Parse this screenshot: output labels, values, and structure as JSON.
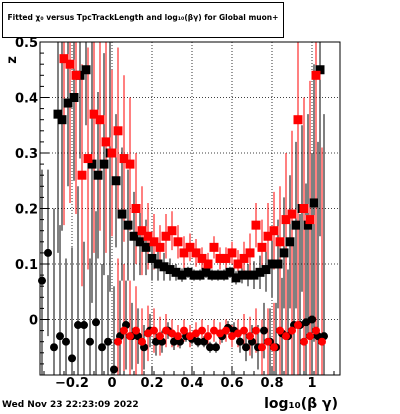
{
  "title": "Fitted  χ₀ versus TpcTrackLength and log₁₀(βγ) for Global muon+",
  "timestamp": "Wed Nov 23 22:23:09 2022",
  "chart_data": {
    "type": "scatter",
    "xlabel": "log₁₀(β γ)",
    "ylabel": "z",
    "xlim": [
      -0.36,
      1.14
    ],
    "ylim": [
      -0.1,
      0.5
    ],
    "grid": true,
    "x_ticks": [
      -0.2,
      0,
      0.2,
      0.4,
      0.6,
      0.8,
      1
    ],
    "x_tick_labels": [
      "−0.2",
      "0",
      "0.2",
      "0.4",
      "0.6",
      "0.8",
      "1"
    ],
    "y_ticks": [
      0,
      0.1,
      0.2,
      0.3,
      0.4,
      0.5
    ],
    "y_tick_labels": [
      "0",
      "0.1",
      "0.2",
      "0.3",
      "0.4",
      "0.5"
    ],
    "colors": {
      "black": "#000000",
      "red": "#ff0000"
    },
    "series": [
      {
        "color": "black",
        "marker": "square",
        "x": [
          -0.27,
          -0.25,
          -0.22,
          -0.19,
          -0.16,
          -0.13,
          -0.1,
          -0.07,
          -0.04,
          -0.01,
          0.02,
          0.05,
          0.08,
          0.11,
          0.14,
          0.17,
          0.2,
          0.23,
          0.26,
          0.29,
          0.32,
          0.35,
          0.38,
          0.41,
          0.44,
          0.47,
          0.5,
          0.53,
          0.56,
          0.59,
          0.62,
          0.65,
          0.68,
          0.71,
          0.74,
          0.77,
          0.8,
          0.83,
          0.86,
          0.89,
          0.92,
          0.95,
          0.98,
          1.01,
          1.04
        ],
        "y": [
          0.37,
          0.36,
          0.39,
          0.4,
          0.44,
          0.45,
          0.28,
          0.26,
          0.28,
          0.3,
          0.25,
          0.19,
          0.17,
          0.15,
          0.14,
          0.13,
          0.11,
          0.1,
          0.095,
          0.09,
          0.085,
          0.08,
          0.085,
          0.08,
          0.08,
          0.085,
          0.08,
          0.08,
          0.08,
          0.085,
          0.075,
          0.08,
          0.08,
          0.08,
          0.085,
          0.09,
          0.1,
          0.1,
          0.12,
          0.14,
          0.17,
          0.2,
          0.17,
          0.21,
          0.45
        ],
        "yerr": [
          0.25,
          0.2,
          0.15,
          0.15,
          0.15,
          0.1,
          0.25,
          0.15,
          0.2,
          0.25,
          0.12,
          0.12,
          0.1,
          0.08,
          0.06,
          0.05,
          0.04,
          0.03,
          0.025,
          0.02,
          0.015,
          0.012,
          0.01,
          0.01,
          0.01,
          0.01,
          0.01,
          0.01,
          0.01,
          0.01,
          0.012,
          0.015,
          0.02,
          0.025,
          0.03,
          0.04,
          0.06,
          0.08,
          0.1,
          0.12,
          0.15,
          0.15,
          0.2,
          0.25,
          0.3
        ]
      },
      {
        "color": "red",
        "marker": "square",
        "x": [
          -0.24,
          -0.21,
          -0.18,
          -0.15,
          -0.12,
          -0.09,
          -0.06,
          -0.03,
          0.0,
          0.03,
          0.06,
          0.09,
          0.12,
          0.15,
          0.18,
          0.21,
          0.24,
          0.27,
          0.3,
          0.33,
          0.36,
          0.39,
          0.42,
          0.45,
          0.48,
          0.51,
          0.54,
          0.57,
          0.6,
          0.63,
          0.66,
          0.69,
          0.72,
          0.75,
          0.78,
          0.81,
          0.84,
          0.87,
          0.9,
          0.93,
          0.96,
          0.99,
          1.02
        ],
        "y": [
          0.47,
          0.46,
          0.44,
          0.26,
          0.29,
          0.37,
          0.36,
          0.32,
          0.3,
          0.34,
          0.29,
          0.28,
          0.2,
          0.16,
          0.15,
          0.14,
          0.13,
          0.15,
          0.16,
          0.14,
          0.12,
          0.13,
          0.12,
          0.11,
          0.1,
          0.13,
          0.11,
          0.11,
          0.12,
          0.1,
          0.11,
          0.12,
          0.17,
          0.13,
          0.15,
          0.16,
          0.14,
          0.18,
          0.19,
          0.36,
          0.2,
          0.18,
          0.44
        ],
        "yerr": [
          0.3,
          0.25,
          0.25,
          0.2,
          0.2,
          0.25,
          0.2,
          0.2,
          0.15,
          0.15,
          0.15,
          0.12,
          0.1,
          0.08,
          0.06,
          0.05,
          0.04,
          0.04,
          0.035,
          0.03,
          0.03,
          0.025,
          0.025,
          0.02,
          0.02,
          0.02,
          0.02,
          0.02,
          0.02,
          0.025,
          0.03,
          0.035,
          0.04,
          0.05,
          0.06,
          0.07,
          0.1,
          0.12,
          0.15,
          0.2,
          0.2,
          0.25,
          0.3
        ]
      },
      {
        "color": "black",
        "marker": "circle",
        "x": [
          -0.35,
          -0.32,
          -0.29,
          -0.26,
          -0.23,
          -0.2,
          -0.17,
          -0.14,
          -0.11,
          -0.08,
          -0.05,
          -0.02,
          0.01,
          0.04,
          0.07,
          0.1,
          0.13,
          0.16,
          0.19,
          0.22,
          0.25,
          0.28,
          0.31,
          0.34,
          0.37,
          0.4,
          0.43,
          0.46,
          0.49,
          0.52,
          0.55,
          0.58,
          0.61,
          0.64,
          0.67,
          0.7,
          0.73,
          0.76,
          0.79,
          0.82,
          0.85,
          0.88,
          0.91,
          0.94,
          0.97,
          1.0,
          1.03,
          1.06
        ],
        "y": [
          0.07,
          0.12,
          -0.05,
          -0.03,
          -0.04,
          -0.07,
          -0.01,
          -0.01,
          -0.04,
          -0.005,
          -0.05,
          -0.04,
          -0.09,
          -0.03,
          -0.01,
          -0.03,
          -0.03,
          -0.05,
          -0.02,
          -0.04,
          -0.04,
          -0.02,
          -0.04,
          -0.04,
          -0.03,
          -0.035,
          -0.04,
          -0.04,
          -0.05,
          -0.05,
          -0.03,
          -0.015,
          -0.02,
          -0.04,
          -0.05,
          -0.04,
          -0.05,
          -0.02,
          -0.04,
          -0.05,
          -0.025,
          -0.03,
          -0.01,
          -0.01,
          -0.005,
          0.0,
          -0.03,
          -0.03
        ],
        "yerr": [
          0.2,
          0.15,
          0.25,
          0.2,
          0.15,
          0.2,
          0.25,
          0.15,
          0.15,
          0.2,
          0.15,
          0.12,
          0.15,
          0.1,
          0.08,
          0.06,
          0.05,
          0.04,
          0.03,
          0.025,
          0.02,
          0.015,
          0.015,
          0.012,
          0.01,
          0.01,
          0.01,
          0.01,
          0.01,
          0.01,
          0.012,
          0.012,
          0.015,
          0.02,
          0.025,
          0.03,
          0.04,
          0.05,
          0.06,
          0.08,
          0.1,
          0.12,
          0.15,
          0.2,
          0.25,
          0.3,
          0.35,
          0.4
        ]
      },
      {
        "color": "red",
        "marker": "circle",
        "x": [
          0.03,
          0.06,
          0.09,
          0.12,
          0.15,
          0.18,
          0.21,
          0.24,
          0.27,
          0.3,
          0.33,
          0.36,
          0.39,
          0.42,
          0.45,
          0.48,
          0.51,
          0.54,
          0.57,
          0.6,
          0.63,
          0.66,
          0.69,
          0.72,
          0.75,
          0.78,
          0.81,
          0.84,
          0.87,
          0.9,
          0.93,
          0.96,
          0.99,
          1.02,
          1.05
        ],
        "y": [
          -0.04,
          -0.02,
          -0.03,
          -0.02,
          -0.04,
          -0.025,
          -0.02,
          -0.03,
          -0.02,
          -0.025,
          -0.03,
          -0.02,
          -0.03,
          -0.025,
          -0.02,
          -0.03,
          -0.02,
          -0.025,
          -0.02,
          -0.03,
          -0.025,
          -0.02,
          -0.03,
          -0.02,
          -0.05,
          -0.04,
          -0.05,
          -0.02,
          -0.03,
          -0.02,
          -0.01,
          -0.04,
          -0.03,
          -0.02,
          -0.04
        ],
        "yerr": [
          0.15,
          0.12,
          0.1,
          0.08,
          0.06,
          0.05,
          0.04,
          0.035,
          0.03,
          0.025,
          0.02,
          0.02,
          0.02,
          0.02,
          0.02,
          0.02,
          0.02,
          0.02,
          0.02,
          0.02,
          0.025,
          0.03,
          0.035,
          0.04,
          0.05,
          0.06,
          0.08,
          0.1,
          0.12,
          0.15,
          0.18,
          0.2,
          0.25,
          0.3,
          0.35
        ]
      }
    ]
  }
}
